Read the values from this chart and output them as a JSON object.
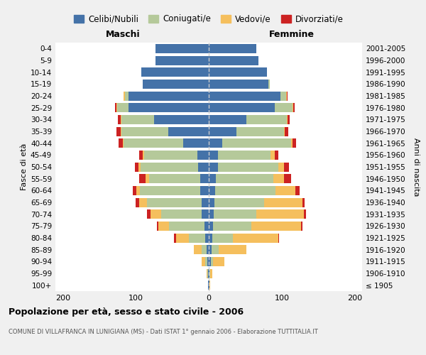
{
  "age_groups": [
    "100+",
    "95-99",
    "90-94",
    "85-89",
    "80-84",
    "75-79",
    "70-74",
    "65-69",
    "60-64",
    "55-59",
    "50-54",
    "45-49",
    "40-44",
    "35-39",
    "30-34",
    "25-29",
    "20-24",
    "15-19",
    "10-14",
    "5-9",
    "0-4"
  ],
  "birth_years": [
    "≤ 1905",
    "1906-1910",
    "1911-1915",
    "1916-1920",
    "1921-1925",
    "1926-1930",
    "1931-1935",
    "1936-1940",
    "1941-1945",
    "1946-1950",
    "1951-1955",
    "1956-1960",
    "1961-1965",
    "1966-1970",
    "1971-1975",
    "1976-1980",
    "1981-1985",
    "1986-1990",
    "1991-1995",
    "1996-2000",
    "2001-2005"
  ],
  "colors": {
    "celibi": "#4472a8",
    "coniugati": "#b5c99a",
    "vedovi": "#f5bf5d",
    "divorziati": "#cc2222"
  },
  "maschi": {
    "celibi": [
      1,
      1,
      2,
      3,
      5,
      6,
      10,
      10,
      12,
      12,
      15,
      16,
      35,
      55,
      75,
      110,
      110,
      90,
      92,
      73,
      73
    ],
    "coniugati": [
      0,
      1,
      3,
      7,
      22,
      48,
      55,
      75,
      82,
      70,
      78,
      72,
      82,
      65,
      45,
      15,
      5,
      0,
      0,
      0,
      0
    ],
    "vedovi": [
      0,
      1,
      5,
      10,
      18,
      15,
      15,
      10,
      5,
      5,
      3,
      2,
      1,
      1,
      1,
      1,
      2,
      0,
      0,
      0,
      0
    ],
    "divorziati": [
      0,
      0,
      0,
      0,
      3,
      2,
      5,
      5,
      5,
      8,
      5,
      5,
      5,
      5,
      3,
      2,
      0,
      0,
      0,
      0,
      0
    ]
  },
  "femmine": {
    "celibi": [
      1,
      1,
      3,
      4,
      5,
      6,
      7,
      8,
      9,
      10,
      13,
      13,
      18,
      38,
      52,
      90,
      98,
      82,
      80,
      68,
      65
    ],
    "coniugati": [
      0,
      1,
      3,
      10,
      28,
      52,
      58,
      68,
      82,
      78,
      82,
      72,
      95,
      65,
      55,
      25,
      8,
      2,
      0,
      0,
      0
    ],
    "vedovi": [
      1,
      3,
      15,
      38,
      62,
      68,
      65,
      52,
      28,
      15,
      8,
      5,
      2,
      1,
      1,
      1,
      1,
      0,
      0,
      0,
      0
    ],
    "divorziati": [
      0,
      0,
      0,
      0,
      1,
      2,
      3,
      3,
      5,
      10,
      7,
      5,
      5,
      5,
      3,
      2,
      1,
      0,
      0,
      0,
      0
    ]
  },
  "title": "Popolazione per età, sesso e stato civile - 2006",
  "subtitle": "COMUNE DI VILLAFRANCA IN LUNIGIANA (MS) - Dati ISTAT 1° gennaio 2006 - Elaborazione TUTTITALIA.IT",
  "ylabel_left": "Fasce di età",
  "ylabel_right": "Anni di nascita",
  "xlabel_left": "Maschi",
  "xlabel_right": "Femmine",
  "xlim": 210,
  "background_color": "#f0f0f0",
  "plot_background": "#ffffff",
  "legend_labels": [
    "Celibi/Nubili",
    "Coniugati/e",
    "Vedovi/e",
    "Divorziati/e"
  ]
}
